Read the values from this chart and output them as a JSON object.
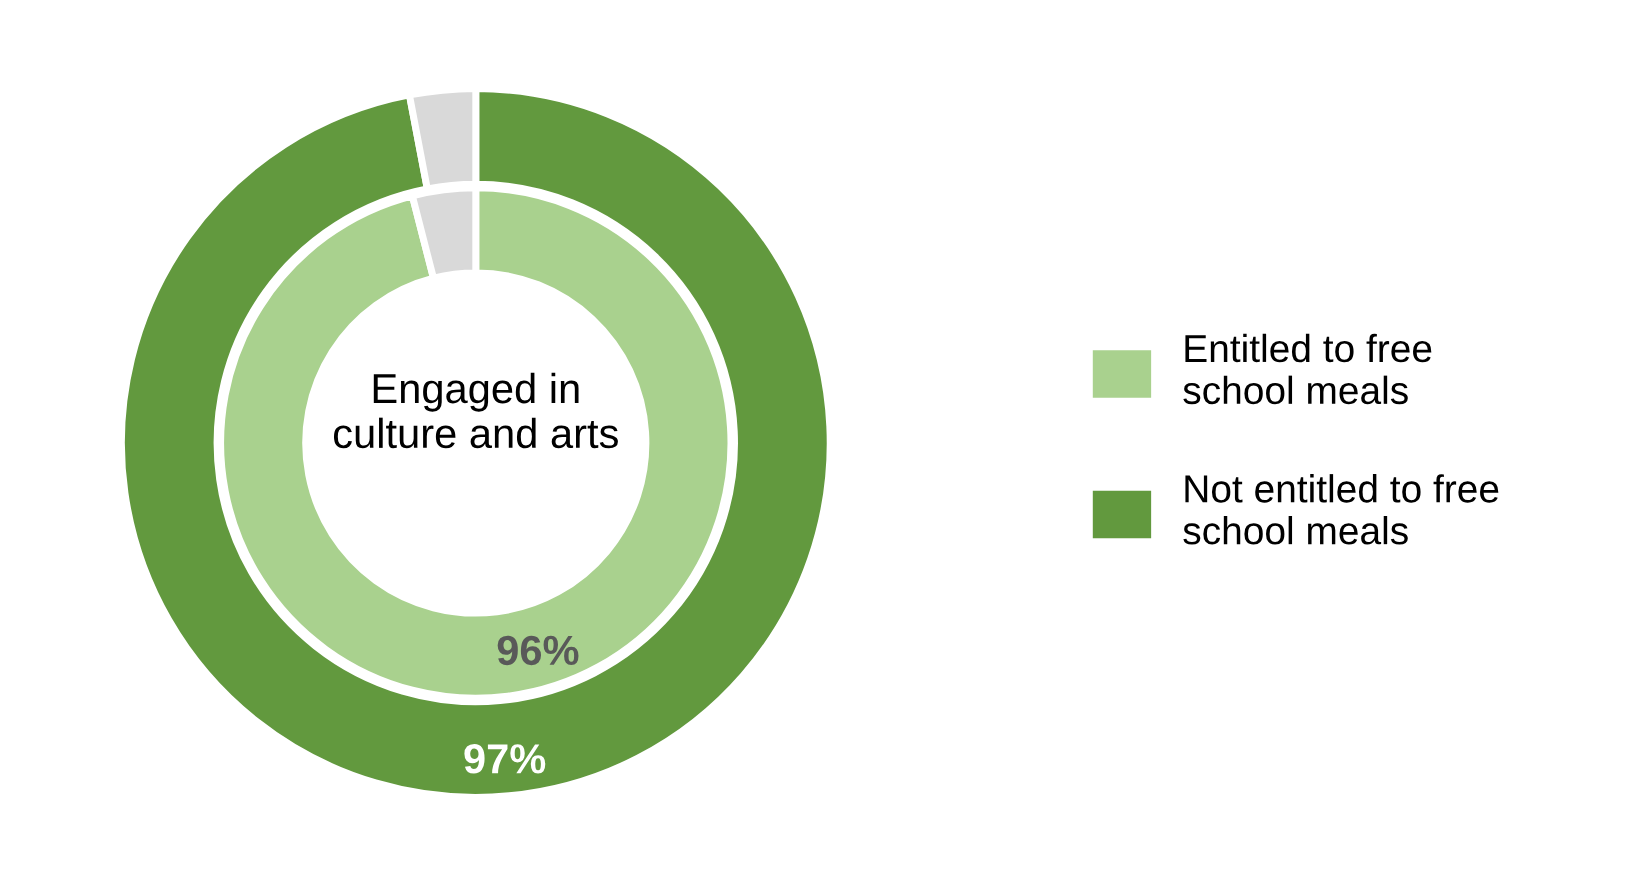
{
  "chart_data": {
    "type": "donut",
    "annotations": [
      "Engaged in\nculture and arts"
    ],
    "categories": [
      null,
      null
    ],
    "series": [
      {
        "name": "Entitled to free\nschool meals",
        "color": "#a9d18e",
        "colors": [
          "#a9d18e",
          "#d9d9d9"
        ],
        "values": [
          96,
          4
        ],
        "value_labels": [
          "96%",
          null
        ]
      },
      {
        "name": "Not entitled to free\nschool meals",
        "color": "#62993e",
        "colors": [
          "#62993e",
          "#d9d9d9"
        ],
        "values": [
          97,
          3
        ],
        "value_labels": [
          "97%",
          null
        ]
      }
    ],
    "legend": "right"
  }
}
